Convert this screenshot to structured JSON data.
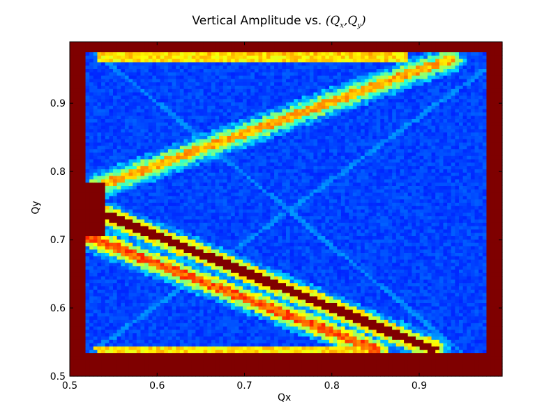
{
  "chart_data": {
    "type": "heatmap",
    "title": {
      "prefix": "Vertical Amplitude vs. ",
      "math_open": "(",
      "q1_base": "Q",
      "q1_sub": "x",
      "sep": ",",
      "q2_base": "Q",
      "q2_sub": "y",
      "math_close": ")"
    },
    "xlabel": "Qx",
    "ylabel": "Qy",
    "xlim": [
      0.5,
      0.995
    ],
    "ylim": [
      0.5,
      0.99
    ],
    "x_ticks": [
      "0.5",
      "0.6",
      "0.7",
      "0.8",
      "0.9"
    ],
    "x_tick_values": [
      0.5,
      0.6,
      0.7,
      0.8,
      0.9
    ],
    "y_ticks": [
      "0.5",
      "0.6",
      "0.7",
      "0.8",
      "0.9"
    ],
    "y_tick_values": [
      0.5,
      0.6,
      0.7,
      0.8,
      0.9
    ],
    "colormap": "jet",
    "background_color": "#0a36d8",
    "saturated_color": "#7f0000",
    "features": [
      {
        "kind": "band",
        "name": "coupling-resonance-band",
        "from": [
          0.535,
          0.78
        ],
        "to": [
          0.935,
          0.965
        ],
        "intensity": 0.55,
        "halo": 0.35
      },
      {
        "kind": "band",
        "name": "difference-resonance-upper",
        "from": [
          0.545,
          0.735
        ],
        "to": [
          0.915,
          0.54
        ],
        "intensity": 1.0,
        "halo": 0.7
      },
      {
        "kind": "band",
        "name": "difference-resonance-lower",
        "from": [
          0.52,
          0.705
        ],
        "to": [
          0.85,
          0.54
        ],
        "intensity": 0.8,
        "halo": 0.6
      },
      {
        "kind": "band",
        "name": "top-edge-line",
        "from": [
          0.535,
          0.975
        ],
        "to": [
          0.88,
          0.975
        ],
        "intensity": 0.45,
        "halo": 0.0
      },
      {
        "kind": "band",
        "name": "top-edge-line-2",
        "from": [
          0.535,
          0.965
        ],
        "to": [
          0.88,
          0.965
        ],
        "intensity": 0.4,
        "halo": 0.0
      },
      {
        "kind": "band",
        "name": "bottom-edge-line",
        "from": [
          0.535,
          0.54
        ],
        "to": [
          0.85,
          0.54
        ],
        "intensity": 0.4,
        "halo": 0.0
      }
    ],
    "saturated_regions": [
      {
        "name": "left-strip",
        "x": [
          0.5,
          0.518
        ],
        "y": [
          0.5,
          0.99
        ]
      },
      {
        "name": "right-strip",
        "x": [
          0.975,
          0.995
        ],
        "y": [
          0.5,
          0.99
        ]
      },
      {
        "name": "bottom-strip",
        "x": [
          0.5,
          0.995
        ],
        "y": [
          0.5,
          0.535
        ]
      },
      {
        "name": "top-strip",
        "x": [
          0.5,
          0.995
        ],
        "y": [
          0.975,
          0.99
        ]
      },
      {
        "name": "left-wedge",
        "x": [
          0.5,
          0.54
        ],
        "y": [
          0.705,
          0.785
        ]
      }
    ]
  }
}
